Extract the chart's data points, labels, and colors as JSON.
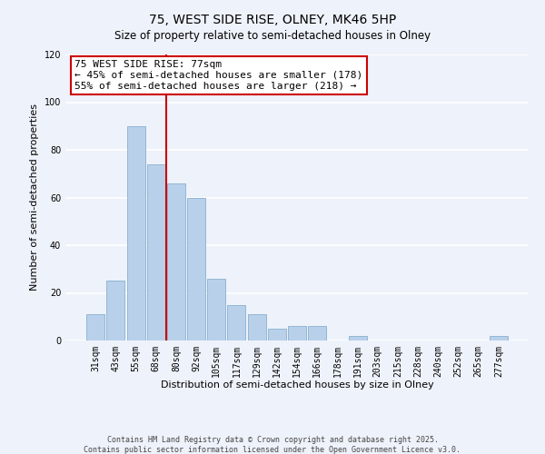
{
  "title": "75, WEST SIDE RISE, OLNEY, MK46 5HP",
  "subtitle": "Size of property relative to semi-detached houses in Olney",
  "xlabel": "Distribution of semi-detached houses by size in Olney",
  "ylabel": "Number of semi-detached properties",
  "bar_labels": [
    "31sqm",
    "43sqm",
    "55sqm",
    "68sqm",
    "80sqm",
    "92sqm",
    "105sqm",
    "117sqm",
    "129sqm",
    "142sqm",
    "154sqm",
    "166sqm",
    "178sqm",
    "191sqm",
    "203sqm",
    "215sqm",
    "228sqm",
    "240sqm",
    "252sqm",
    "265sqm",
    "277sqm"
  ],
  "bar_values": [
    11,
    25,
    90,
    74,
    66,
    60,
    26,
    15,
    11,
    5,
    6,
    6,
    0,
    2,
    0,
    0,
    0,
    0,
    0,
    0,
    2
  ],
  "bar_color": "#b8d0ea",
  "bar_edge_color": "#8ab0d0",
  "vline_color": "#cc0000",
  "ylim": [
    0,
    120
  ],
  "yticks": [
    0,
    20,
    40,
    60,
    80,
    100,
    120
  ],
  "annotation_title": "75 WEST SIDE RISE: 77sqm",
  "annotation_line1": "← 45% of semi-detached houses are smaller (178)",
  "annotation_line2": "55% of semi-detached houses are larger (218) →",
  "annotation_box_color": "#ffffff",
  "annotation_box_edge": "#cc0000",
  "footer_line1": "Contains HM Land Registry data © Crown copyright and database right 2025.",
  "footer_line2": "Contains public sector information licensed under the Open Government Licence v3.0.",
  "background_color": "#eef2fa",
  "grid_color": "#ffffff",
  "title_fontsize": 10,
  "axis_label_fontsize": 8,
  "tick_fontsize": 7,
  "footer_fontsize": 6,
  "annotation_fontsize": 8
}
